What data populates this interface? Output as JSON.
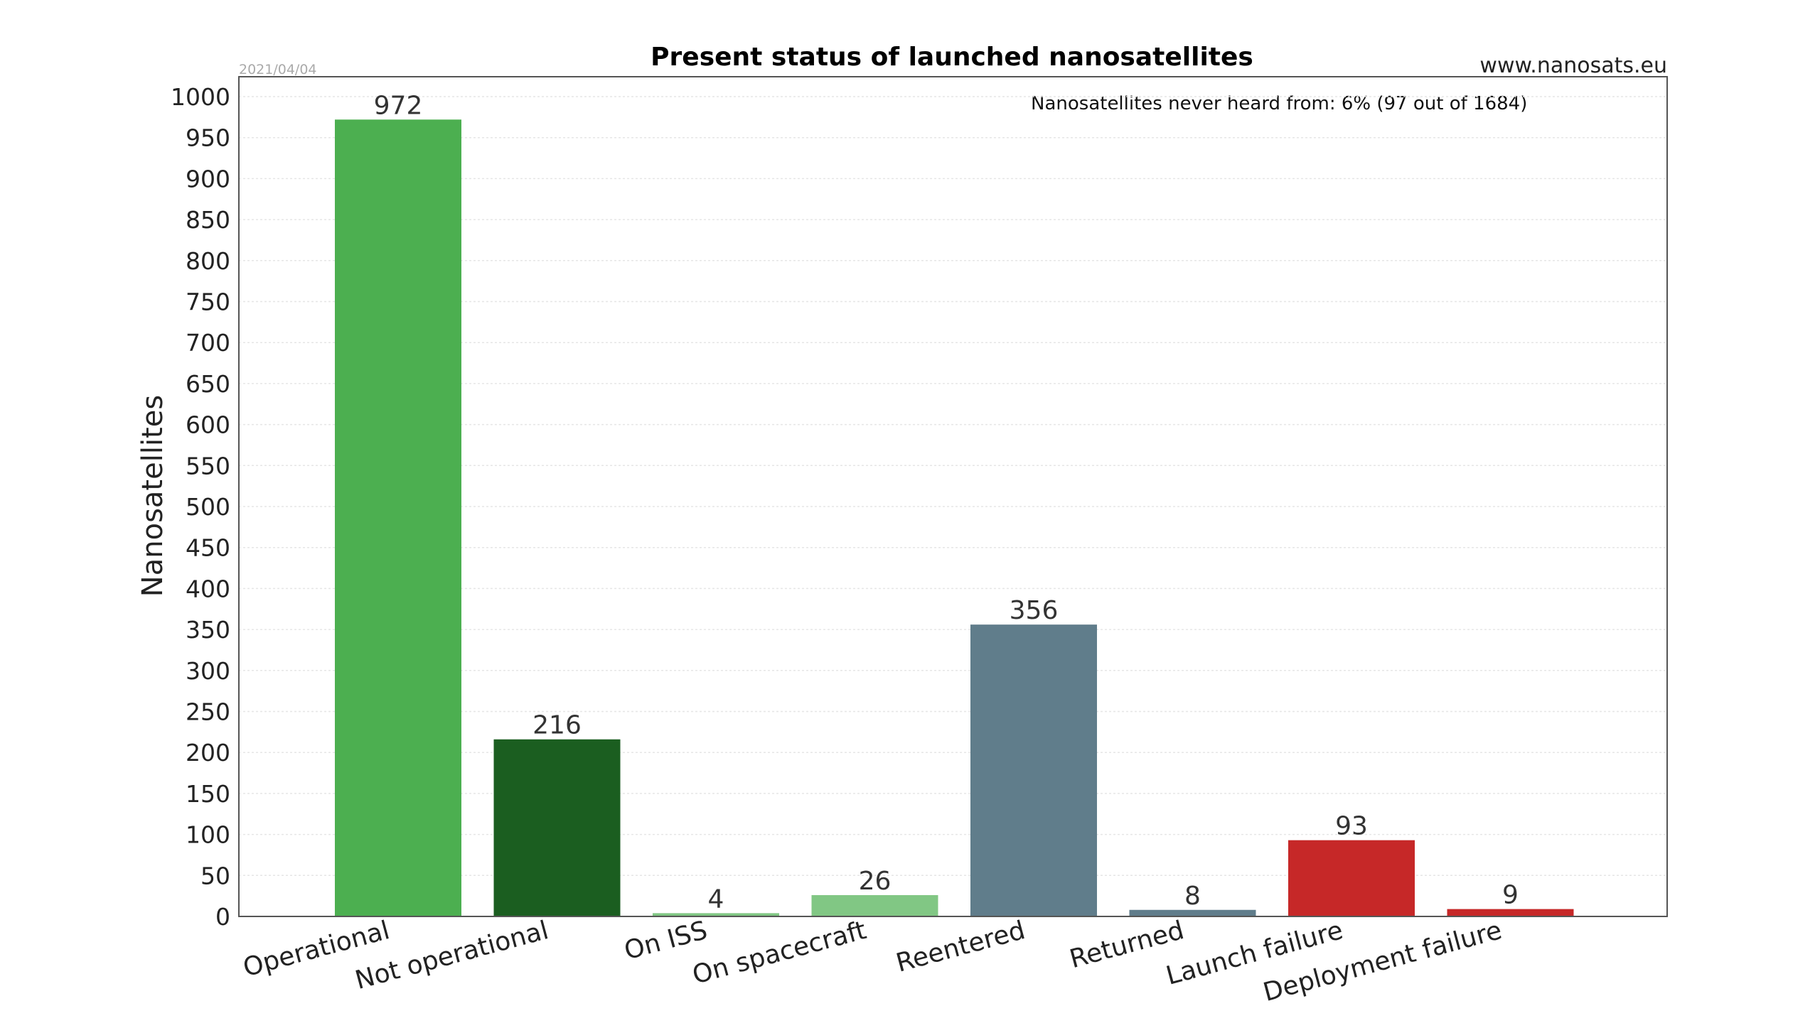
{
  "header": {
    "title": "Present status of launched nanosatellites",
    "source": "www.nanosats.eu",
    "date": "2021/04/04",
    "note": "Nanosatellites never heard from: 6% (97 out of 1684)"
  },
  "chart_data": {
    "type": "bar",
    "title": "Present status of launched nanosatellites",
    "xlabel": "",
    "ylabel": "Nanosatellites",
    "ylim": [
      0,
      1000
    ],
    "yticks": [
      0,
      50,
      100,
      150,
      200,
      250,
      300,
      350,
      400,
      450,
      500,
      550,
      600,
      650,
      700,
      750,
      800,
      850,
      900,
      950,
      1000
    ],
    "grid": true,
    "categories": [
      "Operational",
      "Not operational",
      "On ISS",
      "On spacecraft",
      "Reentered",
      "Returned",
      "Launch failure",
      "Deployment failure"
    ],
    "values": [
      972,
      216,
      4,
      26,
      356,
      8,
      93,
      9
    ],
    "colors": [
      "#4caf50",
      "#1b5e20",
      "#81c784",
      "#81c784",
      "#607d8b",
      "#607d8b",
      "#c62828",
      "#c62828"
    ]
  }
}
